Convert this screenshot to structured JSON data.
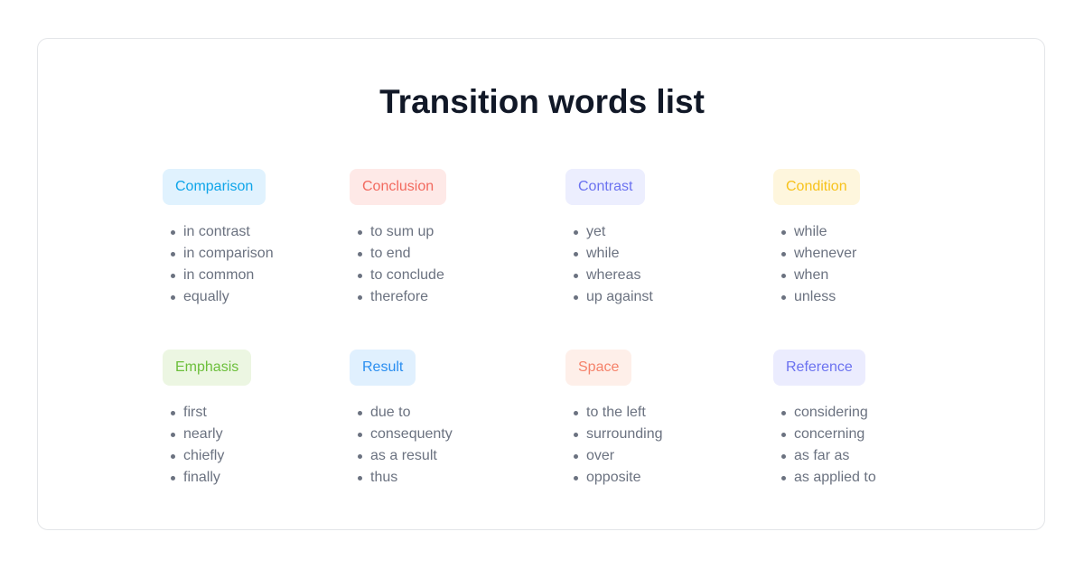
{
  "title": "Transition words list",
  "groups": [
    {
      "label": "Comparison",
      "bg": "#e0f2fe",
      "color": "#0ea5e9",
      "items": [
        "in contrast",
        "in comparison",
        "in common",
        "equally"
      ]
    },
    {
      "label": "Conclusion",
      "bg": "#fee9e7",
      "color": "#f26a5f",
      "items": [
        "to sum up",
        "to end",
        "to conclude",
        "therefore"
      ]
    },
    {
      "label": "Contrast",
      "bg": "#eceefe",
      "color": "#6b72f0",
      "items": [
        "yet",
        "while",
        "whereas",
        "up against"
      ]
    },
    {
      "label": "Condition",
      "bg": "#fef6dd",
      "color": "#f7c21b",
      "items": [
        "while",
        "whenever",
        "when",
        "unless"
      ]
    },
    {
      "label": "Emphasis",
      "bg": "#ecf6e2",
      "color": "#6cbf3b",
      "items": [
        "first",
        "nearly",
        "chiefly",
        "finally"
      ]
    },
    {
      "label": "Result",
      "bg": "#e0f0fe",
      "color": "#2a8ef0",
      "items": [
        "due to",
        "consequenty",
        "as a result",
        "thus"
      ]
    },
    {
      "label": "Space",
      "bg": "#feefe9",
      "color": "#f5826a",
      "items": [
        "to the left",
        "surrounding",
        "over",
        "opposite"
      ]
    },
    {
      "label": "Reference",
      "bg": "#ebecfe",
      "color": "#6b72f0",
      "items": [
        "considering",
        "concerning",
        "as far as",
        "as applied to"
      ]
    }
  ]
}
